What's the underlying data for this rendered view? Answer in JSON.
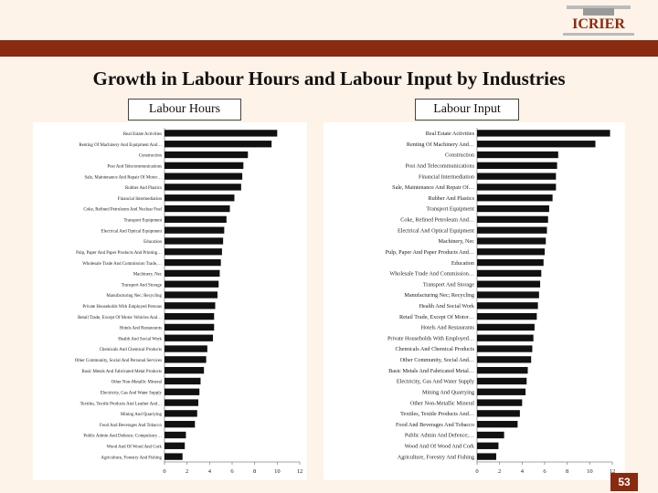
{
  "header": {
    "logo_text": "ICRIER",
    "title": "Growth in Labour Hours and Labour Input by Industries",
    "page_number": "53"
  },
  "colors": {
    "band": "#8a2a10",
    "bar": "#111111",
    "background": "#fdf3e8"
  },
  "chart_data": [
    {
      "type": "bar",
      "orientation": "horizontal",
      "title": "Labour  Hours",
      "xlim": [
        0,
        12
      ],
      "xticks": [
        "0",
        "2",
        "4",
        "6",
        "8",
        "10",
        "12"
      ],
      "categories": [
        "Real Estate Activities",
        "Renting Of Machinery And Equipment And…",
        "Construction",
        "Post And Telecommunications",
        "Sale, Maintenance And Repair Of Motor…",
        "Rubber And Plastics",
        "Financial Intermediation",
        "Coke, Refined Petroleum And Nuclear Fuel",
        "Transport Equipment",
        "Electrical And Optical Equipment",
        "Education",
        "Pulp, Paper And Paper Products And Printing…",
        "Wholesale Trade And Commission Trade,…",
        "Machinery, Nec",
        "Transport And Storage",
        "Manufacturing Nec; Recycling",
        "Private Households With Employed Persons",
        "Retail Trade, Except Of Motor Vehicles And…",
        "Hotels And Restaurants",
        "Health And Social Work",
        "Chemicals And Chemical Products",
        "Other Community, Social And Personal Services",
        "Basic Metals And Fabricated Metal Products",
        "Other Non-Metallic Mineral",
        "Electricity, Gas And Water Supply",
        "Textiles, Textile Products And Leather And…",
        "Mining And Quarrying",
        "Food And Beverages And Tobacco",
        "Public Admin And Defence; Compulsory…",
        "Wood And Of Wood And Cork",
        "Agriculture, Forestry And Fishing"
      ],
      "values": [
        10.0,
        9.5,
        7.4,
        7.0,
        6.9,
        6.8,
        6.2,
        5.8,
        5.5,
        5.3,
        5.2,
        5.1,
        5.0,
        4.9,
        4.8,
        4.7,
        4.5,
        4.4,
        4.4,
        4.3,
        3.8,
        3.7,
        3.5,
        3.2,
        3.1,
        3.0,
        2.9,
        2.7,
        1.9,
        1.8,
        1.6
      ]
    },
    {
      "type": "bar",
      "orientation": "horizontal",
      "title": "Labour Input",
      "xlim": [
        0,
        12
      ],
      "xticks": [
        "0",
        "2",
        "4",
        "6",
        "8",
        "10",
        "12"
      ],
      "categories": [
        "Real Estate Activities",
        "Renting Of Machinery And…",
        "Construction",
        "Post And Telecommunications",
        "Financial Intermediation",
        "Sale, Maintenance And Repair Of…",
        "Rubber And Plastics",
        "Transport Equipment",
        "Coke, Refined Petroleum And…",
        "Electrical And Optical Equipment",
        "Machinery, Nec",
        "Pulp, Paper And Paper Products And…",
        "Education",
        "Wholesale Trade And Commission…",
        "Transport And Storage",
        "Manufacturing Nec; Recycling",
        "Health And Social Work",
        "Retail Trade, Except Of Motor…",
        "Hotels And Restaurants",
        "Private Households With Employed…",
        "Chemicals And Chemical Products",
        "Other Community, Social And…",
        "Basic Metals And Fabricated Metal…",
        "Electricity, Gas And Water Supply",
        "Mining And Quarrying",
        "Other Non-Metallic Mineral",
        "Textiles, Textile Products And…",
        "Food And Beverages And Tobacco",
        "Public Admin And Defence;…",
        "Wood And Of Wood And Cork",
        "Agriculture, Forestry And Fishing"
      ],
      "values": [
        11.8,
        10.5,
        7.2,
        7.1,
        7.0,
        7.0,
        6.7,
        6.4,
        6.3,
        6.2,
        6.1,
        6.0,
        5.9,
        5.7,
        5.6,
        5.5,
        5.4,
        5.3,
        5.1,
        5.0,
        4.9,
        4.8,
        4.5,
        4.4,
        4.3,
        4.0,
        3.8,
        3.6,
        2.4,
        1.9,
        1.7
      ]
    }
  ]
}
